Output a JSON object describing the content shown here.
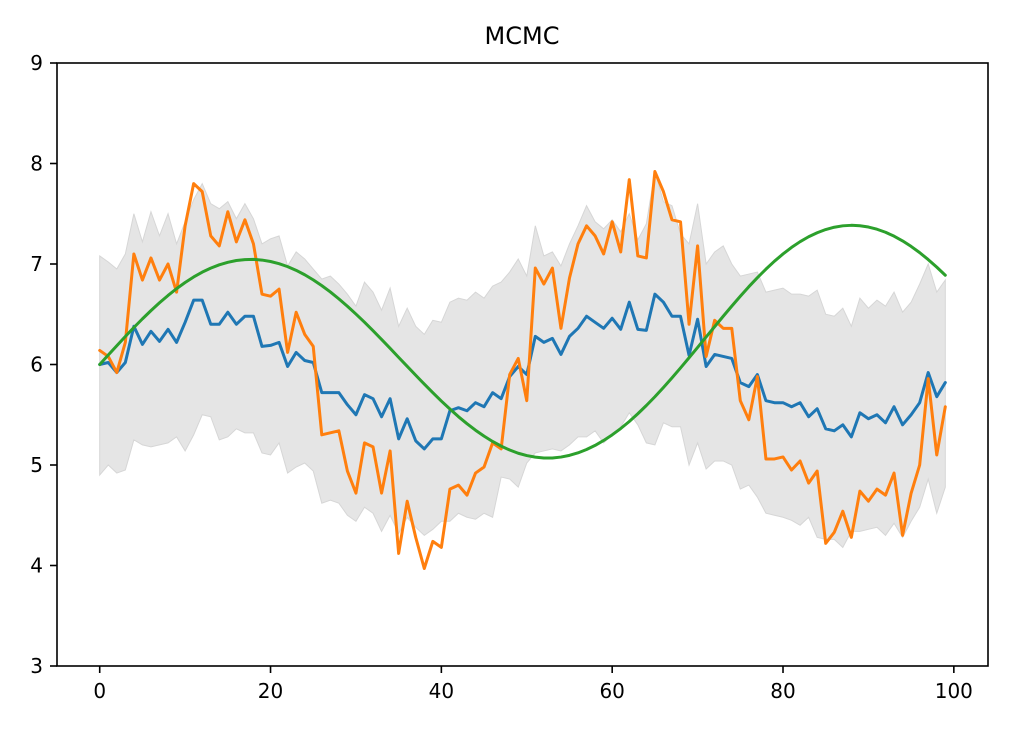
{
  "chart_data": {
    "type": "line",
    "title": "MCMC",
    "xlabel": "",
    "ylabel": "",
    "xlim": [
      -5,
      104
    ],
    "ylim": [
      3,
      9
    ],
    "xticks": [
      0,
      20,
      40,
      60,
      80,
      100
    ],
    "yticks": [
      3,
      4,
      5,
      6,
      7,
      8,
      9
    ],
    "grid": false,
    "x": [
      0,
      1,
      2,
      3,
      4,
      5,
      6,
      7,
      8,
      9,
      10,
      11,
      12,
      13,
      14,
      15,
      16,
      17,
      18,
      19,
      20,
      21,
      22,
      23,
      24,
      25,
      26,
      27,
      28,
      29,
      30,
      31,
      32,
      33,
      34,
      35,
      36,
      37,
      38,
      39,
      40,
      41,
      42,
      43,
      44,
      45,
      46,
      47,
      48,
      49,
      50,
      51,
      52,
      53,
      54,
      55,
      56,
      57,
      58,
      59,
      60,
      61,
      62,
      63,
      64,
      65,
      66,
      67,
      68,
      69,
      70,
      71,
      72,
      73,
      74,
      75,
      76,
      77,
      78,
      79,
      80,
      81,
      82,
      83,
      84,
      85,
      86,
      87,
      88,
      89,
      90,
      91,
      92,
      93,
      94,
      95,
      96,
      97,
      98,
      99
    ],
    "band": {
      "color": "#e5e5e5",
      "upper": [
        7.08,
        7.02,
        6.95,
        7.1,
        7.5,
        7.22,
        7.52,
        7.28,
        7.5,
        7.2,
        7.42,
        7.64,
        7.8,
        7.6,
        7.55,
        7.62,
        7.45,
        7.6,
        7.45,
        7.2,
        7.25,
        7.28,
        6.98,
        7.12,
        7.05,
        6.95,
        6.85,
        6.88,
        6.8,
        6.7,
        6.58,
        6.82,
        6.72,
        6.54,
        6.76,
        6.38,
        6.56,
        6.38,
        6.3,
        6.44,
        6.42,
        6.62,
        6.66,
        6.64,
        6.72,
        6.66,
        6.78,
        6.82,
        6.92,
        7.05,
        6.88,
        7.38,
        7.08,
        7.12,
        6.98,
        7.2,
        7.38,
        7.58,
        7.42,
        7.35,
        7.44,
        7.32,
        7.5,
        7.24,
        7.4,
        7.92,
        7.62,
        7.58,
        7.3,
        7.2,
        7.6,
        7.0,
        7.12,
        7.18,
        7.0,
        6.88,
        6.9,
        6.92,
        6.72,
        6.74,
        6.76,
        6.7,
        6.7,
        6.68,
        6.74,
        6.5,
        6.48,
        6.56,
        6.38,
        6.66,
        6.56,
        6.64,
        6.58,
        6.72,
        6.52,
        6.62,
        6.8,
        7.0,
        6.72,
        6.84
      ],
      "lower": [
        4.9,
        5.0,
        4.92,
        4.95,
        5.25,
        5.2,
        5.18,
        5.2,
        5.22,
        5.28,
        5.14,
        5.3,
        5.5,
        5.48,
        5.25,
        5.28,
        5.36,
        5.32,
        5.32,
        5.12,
        5.1,
        5.22,
        4.92,
        4.98,
        5.02,
        4.94,
        4.62,
        4.65,
        4.62,
        4.5,
        4.44,
        4.58,
        4.52,
        4.34,
        4.5,
        4.32,
        4.48,
        4.38,
        4.3,
        4.36,
        4.44,
        4.44,
        4.52,
        4.48,
        4.46,
        4.52,
        4.48,
        4.88,
        4.86,
        4.78,
        5.02,
        5.12,
        5.14,
        5.16,
        5.14,
        5.2,
        5.28,
        5.28,
        5.34,
        5.22,
        5.3,
        5.38,
        5.52,
        5.4,
        5.22,
        5.2,
        5.42,
        5.38,
        5.38,
        5.0,
        5.22,
        4.96,
        5.04,
        5.04,
        5.0,
        4.76,
        4.8,
        4.68,
        4.52,
        4.5,
        4.48,
        4.45,
        4.4,
        4.48,
        4.28,
        4.26,
        4.26,
        4.18,
        4.34,
        4.34,
        4.36,
        4.38,
        4.3,
        4.42,
        4.28,
        4.44,
        4.58,
        4.86,
        4.52,
        4.78
      ]
    },
    "series": [
      {
        "color": "#1f77b4",
        "values": [
          6.0,
          6.02,
          5.92,
          6.02,
          6.38,
          6.2,
          6.33,
          6.23,
          6.35,
          6.22,
          6.42,
          6.64,
          6.64,
          6.4,
          6.4,
          6.52,
          6.4,
          6.48,
          6.48,
          6.18,
          6.19,
          6.22,
          5.98,
          6.12,
          6.04,
          6.02,
          5.72,
          5.72,
          5.72,
          5.6,
          5.5,
          5.7,
          5.66,
          5.48,
          5.66,
          5.26,
          5.46,
          5.24,
          5.16,
          5.26,
          5.26,
          5.54,
          5.57,
          5.54,
          5.62,
          5.58,
          5.72,
          5.66,
          5.88,
          5.98,
          5.9,
          6.28,
          6.22,
          6.26,
          6.1,
          6.28,
          6.36,
          6.48,
          6.42,
          6.36,
          6.46,
          6.35,
          6.62,
          6.35,
          6.34,
          6.7,
          6.62,
          6.48,
          6.48,
          6.09,
          6.45,
          5.98,
          6.1,
          6.08,
          6.06,
          5.82,
          5.78,
          5.9,
          5.64,
          5.62,
          5.62,
          5.58,
          5.62,
          5.48,
          5.56,
          5.36,
          5.34,
          5.4,
          5.28,
          5.52,
          5.46,
          5.5,
          5.42,
          5.58,
          5.4,
          5.5,
          5.62,
          5.92,
          5.68,
          5.82
        ]
      },
      {
        "color": "#ff7f0e",
        "values": [
          6.14,
          6.08,
          5.92,
          6.22,
          7.1,
          6.84,
          7.06,
          6.84,
          7.0,
          6.72,
          7.38,
          7.8,
          7.72,
          7.28,
          7.18,
          7.52,
          7.22,
          7.44,
          7.2,
          6.7,
          6.68,
          6.75,
          6.12,
          6.52,
          6.3,
          6.18,
          5.3,
          5.32,
          5.34,
          4.94,
          4.72,
          5.22,
          5.18,
          4.72,
          5.14,
          4.12,
          4.64,
          4.28,
          3.97,
          4.24,
          4.18,
          4.76,
          4.8,
          4.7,
          4.92,
          4.98,
          5.22,
          5.16,
          5.9,
          6.06,
          5.64,
          6.96,
          6.8,
          6.96,
          6.36,
          6.86,
          7.2,
          7.38,
          7.28,
          7.1,
          7.42,
          7.12,
          7.84,
          7.08,
          7.06,
          7.92,
          7.72,
          7.44,
          7.42,
          6.4,
          7.18,
          6.08,
          6.44,
          6.36,
          6.36,
          5.64,
          5.45,
          5.88,
          5.06,
          5.06,
          5.08,
          4.95,
          5.04,
          4.82,
          4.94,
          4.22,
          4.33,
          4.54,
          4.28,
          4.74,
          4.64,
          4.76,
          4.7,
          4.92,
          4.3,
          4.72,
          5.0,
          5.86,
          5.1,
          5.58
        ]
      },
      {
        "color": "#2ca02c",
        "values": [
          6.0,
          6.094,
          6.187,
          6.279,
          6.368,
          6.454,
          6.536,
          6.614,
          6.687,
          6.755,
          6.816,
          6.871,
          6.919,
          6.959,
          6.992,
          7.017,
          7.035,
          7.044,
          7.046,
          7.039,
          7.025,
          7.003,
          6.974,
          6.937,
          6.893,
          6.842,
          6.785,
          6.722,
          6.653,
          6.58,
          6.502,
          6.421,
          6.336,
          6.249,
          6.161,
          6.071,
          5.982,
          5.893,
          5.805,
          5.719,
          5.636,
          5.557,
          5.481,
          5.411,
          5.346,
          5.287,
          5.234,
          5.188,
          5.149,
          5.117,
          5.094,
          5.078,
          5.07,
          5.07,
          5.079,
          5.096,
          5.121,
          5.154,
          5.195,
          5.244,
          5.3,
          5.363,
          5.433,
          5.51,
          5.592,
          5.679,
          5.771,
          5.867,
          5.966,
          6.067,
          6.17,
          6.274,
          6.377,
          6.48,
          6.581,
          6.679,
          6.774,
          6.864,
          6.949,
          7.028,
          7.1,
          7.165,
          7.222,
          7.271,
          7.311,
          7.343,
          7.366,
          7.38,
          7.385,
          7.381,
          7.368,
          7.346,
          7.316,
          7.277,
          7.23,
          7.175,
          7.113,
          7.044,
          6.969,
          6.888
        ]
      }
    ]
  }
}
